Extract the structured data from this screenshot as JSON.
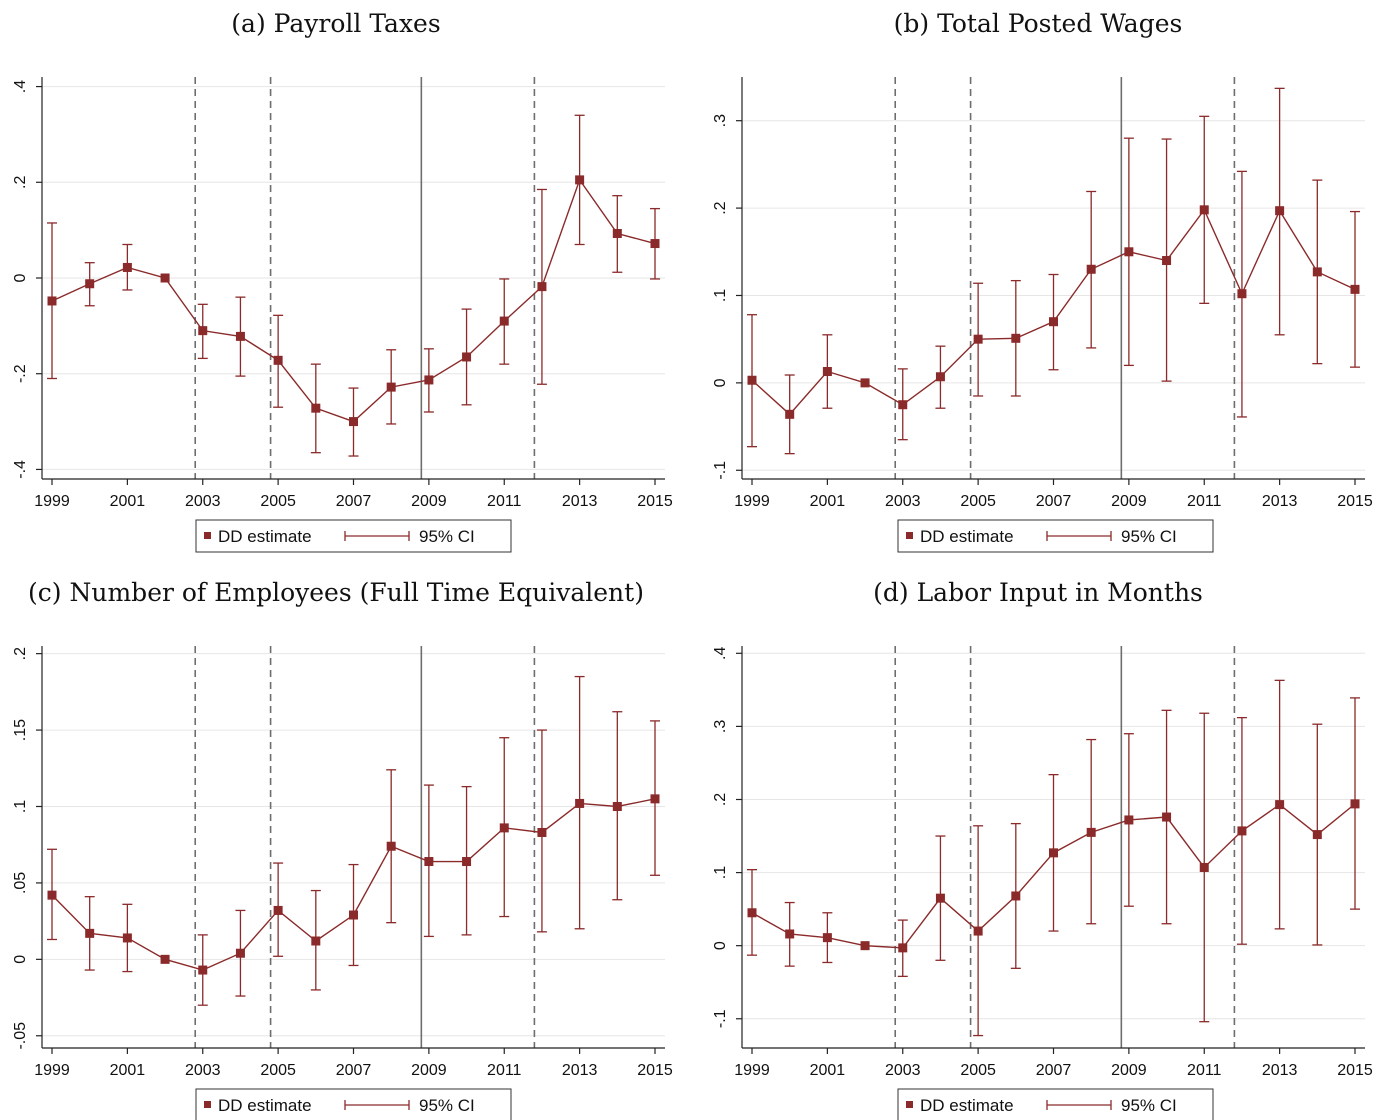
{
  "chart_data": [
    {
      "type": "scatter",
      "title": "(a) Payroll Taxes",
      "x": [
        1999,
        2000,
        2001,
        2002,
        2003,
        2004,
        2005,
        2006,
        2007,
        2008,
        2009,
        2010,
        2011,
        2012,
        2013,
        2014,
        2015
      ],
      "x_ticks": [
        "1999",
        "2001",
        "2003",
        "2005",
        "2007",
        "2009",
        "2011",
        "2013",
        "2015"
      ],
      "y_ticks": [
        {
          "value": -0.4,
          "label": "-.4"
        },
        {
          "value": -0.2,
          "label": "-.2"
        },
        {
          "value": 0,
          "label": "0"
        },
        {
          "value": 0.2,
          "label": ".2"
        },
        {
          "value": 0.4,
          "label": ".4"
        }
      ],
      "ylim": [
        -0.42,
        0.42
      ],
      "vlines_dashed": [
        2002.8,
        2004.8,
        2011.8
      ],
      "vlines_solid": [
        2008.8
      ],
      "series": [
        {
          "name": "DD estimate",
          "values": [
            -0.048,
            -0.012,
            0.022,
            0.0,
            -0.11,
            -0.122,
            -0.172,
            -0.272,
            -0.3,
            -0.228,
            -0.213,
            -0.165,
            -0.09,
            -0.018,
            0.205,
            0.093,
            0.072
          ]
        },
        {
          "name": "95% CI",
          "lower": [
            -0.21,
            -0.058,
            -0.025,
            0.0,
            -0.168,
            -0.205,
            -0.27,
            -0.365,
            -0.372,
            -0.305,
            -0.28,
            -0.265,
            -0.18,
            -0.222,
            0.07,
            0.012,
            -0.002
          ],
          "upper": [
            0.115,
            0.032,
            0.07,
            0.0,
            -0.055,
            -0.04,
            -0.078,
            -0.18,
            -0.23,
            -0.15,
            -0.148,
            -0.065,
            -0.002,
            0.185,
            0.34,
            0.172,
            0.145
          ]
        }
      ],
      "legend": [
        "DD estimate",
        "95% CI"
      ]
    },
    {
      "type": "scatter",
      "title": "(b) Total Posted Wages",
      "x": [
        1999,
        2000,
        2001,
        2002,
        2003,
        2004,
        2005,
        2006,
        2007,
        2008,
        2009,
        2010,
        2011,
        2012,
        2013,
        2014,
        2015
      ],
      "x_ticks": [
        "1999",
        "2001",
        "2003",
        "2005",
        "2007",
        "2009",
        "2011",
        "2013",
        "2015"
      ],
      "y_ticks": [
        {
          "value": -0.1,
          "label": "-.1"
        },
        {
          "value": 0,
          "label": "0"
        },
        {
          "value": 0.1,
          "label": ".1"
        },
        {
          "value": 0.2,
          "label": ".2"
        },
        {
          "value": 0.3,
          "label": ".3"
        }
      ],
      "ylim": [
        -0.11,
        0.35
      ],
      "vlines_dashed": [
        2002.8,
        2004.8,
        2011.8
      ],
      "vlines_solid": [
        2008.8
      ],
      "series": [
        {
          "name": "DD estimate",
          "values": [
            0.003,
            -0.036,
            0.013,
            0.0,
            -0.025,
            0.007,
            0.05,
            0.051,
            0.07,
            0.13,
            0.15,
            0.14,
            0.198,
            0.102,
            0.197,
            0.127,
            0.107
          ]
        },
        {
          "name": "95% CI",
          "lower": [
            -0.073,
            -0.081,
            -0.029,
            0.0,
            -0.065,
            -0.029,
            -0.015,
            -0.015,
            0.015,
            0.04,
            0.02,
            0.002,
            0.091,
            -0.039,
            0.055,
            0.022,
            0.018
          ],
          "upper": [
            0.078,
            0.009,
            0.055,
            0.0,
            0.016,
            0.042,
            0.114,
            0.117,
            0.124,
            0.219,
            0.28,
            0.279,
            0.305,
            0.242,
            0.337,
            0.232,
            0.196
          ]
        }
      ],
      "legend": [
        "DD estimate",
        "95% CI"
      ]
    },
    {
      "type": "scatter",
      "title": "(c) Number of Employees (Full Time Equivalent)",
      "x": [
        1999,
        2000,
        2001,
        2002,
        2003,
        2004,
        2005,
        2006,
        2007,
        2008,
        2009,
        2010,
        2011,
        2012,
        2013,
        2014,
        2015
      ],
      "x_ticks": [
        "1999",
        "2001",
        "2003",
        "2005",
        "2007",
        "2009",
        "2011",
        "2013",
        "2015"
      ],
      "y_ticks": [
        {
          "value": -0.05,
          "label": "-.05"
        },
        {
          "value": 0,
          "label": "0"
        },
        {
          "value": 0.05,
          "label": ".05"
        },
        {
          "value": 0.1,
          "label": ".1"
        },
        {
          "value": 0.15,
          "label": ".15"
        },
        {
          "value": 0.2,
          "label": ".2"
        }
      ],
      "ylim": [
        -0.058,
        0.205
      ],
      "vlines_dashed": [
        2002.8,
        2004.8,
        2011.8
      ],
      "vlines_solid": [
        2008.8
      ],
      "series": [
        {
          "name": "DD estimate",
          "values": [
            0.042,
            0.017,
            0.014,
            0.0,
            -0.007,
            0.004,
            0.032,
            0.012,
            0.029,
            0.074,
            0.064,
            0.064,
            0.086,
            0.083,
            0.102,
            0.1,
            0.105
          ]
        },
        {
          "name": "95% CI",
          "lower": [
            0.013,
            -0.007,
            -0.008,
            0.0,
            -0.03,
            -0.024,
            0.002,
            -0.02,
            -0.004,
            0.024,
            0.015,
            0.016,
            0.028,
            0.018,
            0.02,
            0.039,
            0.055
          ],
          "upper": [
            0.072,
            0.041,
            0.036,
            0.0,
            0.016,
            0.032,
            0.063,
            0.045,
            0.062,
            0.124,
            0.114,
            0.113,
            0.145,
            0.15,
            0.185,
            0.162,
            0.156
          ]
        }
      ],
      "legend": [
        "DD estimate",
        "95% CI"
      ]
    },
    {
      "type": "scatter",
      "title": "(d) Labor Input in Months",
      "x": [
        1999,
        2000,
        2001,
        2002,
        2003,
        2004,
        2005,
        2006,
        2007,
        2008,
        2009,
        2010,
        2011,
        2012,
        2013,
        2014,
        2015
      ],
      "x_ticks": [
        "1999",
        "2001",
        "2003",
        "2005",
        "2007",
        "2009",
        "2011",
        "2013",
        "2015"
      ],
      "y_ticks": [
        {
          "value": -0.1,
          "label": "-.1"
        },
        {
          "value": 0,
          "label": "0"
        },
        {
          "value": 0.1,
          "label": ".1"
        },
        {
          "value": 0.2,
          "label": ".2"
        },
        {
          "value": 0.3,
          "label": ".3"
        },
        {
          "value": 0.4,
          "label": ".4"
        }
      ],
      "ylim": [
        -0.14,
        0.41
      ],
      "vlines_dashed": [
        2002.8,
        2004.8,
        2011.8
      ],
      "vlines_solid": [
        2008.8
      ],
      "series": [
        {
          "name": "DD estimate",
          "values": [
            0.045,
            0.016,
            0.011,
            0.0,
            -0.003,
            0.065,
            0.02,
            0.068,
            0.127,
            0.155,
            0.172,
            0.176,
            0.107,
            0.157,
            0.193,
            0.152,
            0.194
          ]
        },
        {
          "name": "95% CI",
          "lower": [
            -0.013,
            -0.028,
            -0.023,
            0.0,
            -0.042,
            -0.02,
            -0.123,
            -0.031,
            0.02,
            0.03,
            0.054,
            0.03,
            -0.104,
            0.002,
            0.023,
            0.001,
            0.05
          ],
          "upper": [
            0.104,
            0.059,
            0.045,
            0.0,
            0.035,
            0.15,
            0.164,
            0.167,
            0.234,
            0.282,
            0.29,
            0.322,
            0.318,
            0.312,
            0.363,
            0.303,
            0.339
          ]
        }
      ],
      "legend": [
        "DD estimate",
        "95% CI"
      ]
    }
  ]
}
